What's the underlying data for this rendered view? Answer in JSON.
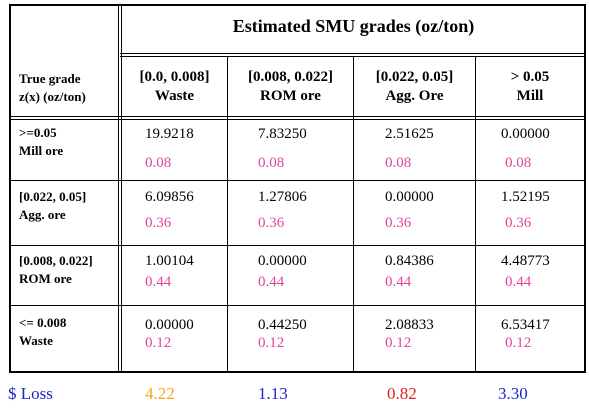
{
  "table": {
    "title": "Estimated SMU grades (oz/ton)",
    "row_header": [
      "True grade",
      "z(x) (oz/ton)"
    ],
    "columns": [
      {
        "range": "[0.0, 0.008]",
        "name": "Waste"
      },
      {
        "range": "[0.008, 0.022]",
        "name": "ROM ore"
      },
      {
        "range": "[0.022, 0.05]",
        "name": "Agg. Ore"
      },
      {
        "range": "> 0.05",
        "name": "Mill"
      }
    ],
    "rows": [
      {
        "label1": ">=0.05",
        "label2": "Mill ore",
        "values": [
          "19.9218",
          "7.83250",
          "2.51625",
          "0.00000"
        ],
        "probs": [
          "0.08",
          "0.08",
          "0.08",
          "0.08"
        ]
      },
      {
        "label1": "[0.022, 0.05]",
        "label2": "Agg. ore",
        "values": [
          "6.09856",
          "1.27806",
          "0.00000",
          "1.52195"
        ],
        "probs": [
          "0.36",
          "0.36",
          "0.36",
          "0.36"
        ]
      },
      {
        "label1": "[0.008, 0.022]",
        "label2": "ROM ore",
        "values": [
          "1.00104",
          "0.00000",
          "0.84386",
          "4.48773"
        ],
        "probs": [
          "0.44",
          "0.44",
          "0.44",
          "0.44"
        ]
      },
      {
        "label1": "<= 0.008",
        "label2": "Waste",
        "values": [
          "0.00000",
          "0.44250",
          "2.08833",
          "6.53417"
        ],
        "probs": [
          "0.12",
          "0.12",
          "0.12",
          "0.12"
        ]
      }
    ]
  },
  "loss": {
    "label": "$ Loss",
    "values": [
      "4.22",
      "1.13",
      "0.82",
      "3.30"
    ],
    "colors": [
      "#f2a818",
      "#1a26c8",
      "#e2231a",
      "#1a26c8"
    ],
    "label_color": "#1a26c8"
  },
  "prob_color": "#e0449c"
}
